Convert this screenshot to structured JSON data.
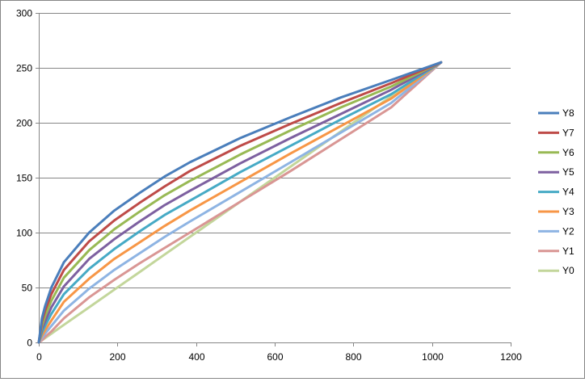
{
  "chart_data": {
    "type": "line",
    "title": "",
    "xlabel": "",
    "ylabel": "",
    "xlim": [
      0,
      1200
    ],
    "ylim": [
      0,
      300
    ],
    "x_ticks": [
      0,
      200,
      400,
      600,
      800,
      1000,
      1200
    ],
    "y_ticks": [
      0,
      50,
      100,
      150,
      200,
      250,
      300
    ],
    "grid": "horizontal",
    "legend_position": "right",
    "x": [
      0,
      8,
      16,
      32,
      64,
      128,
      192,
      256,
      320,
      384,
      512,
      640,
      768,
      896,
      1023
    ],
    "series": [
      {
        "name": "Y8",
        "color": "#4A7EBB",
        "values": [
          0,
          22,
          33,
          50,
          73,
          100,
          120,
          136,
          151,
          164,
          186,
          205,
          223,
          239,
          255
        ]
      },
      {
        "name": "Y7",
        "color": "#BE4B48",
        "values": [
          0,
          19,
          29,
          44,
          66,
          92,
          111,
          127,
          142,
          156,
          179,
          199,
          218,
          236,
          255
        ]
      },
      {
        "name": "Y6",
        "color": "#98B954",
        "values": [
          0,
          15,
          24,
          38,
          59,
          84,
          103,
          119,
          134,
          147,
          171,
          193,
          214,
          233,
          255
        ]
      },
      {
        "name": "Y5",
        "color": "#7D60A0",
        "values": [
          0,
          12,
          19,
          32,
          51,
          76,
          94,
          110,
          125,
          138,
          163,
          186,
          208,
          230,
          255
        ]
      },
      {
        "name": "Y4",
        "color": "#46AAC5",
        "values": [
          0,
          9,
          15,
          26,
          44,
          67,
          85,
          101,
          116,
          129,
          155,
          179,
          203,
          226,
          255
        ]
      },
      {
        "name": "Y3",
        "color": "#F79646",
        "values": [
          0,
          6,
          11,
          20,
          37,
          58,
          76,
          91,
          106,
          120,
          146,
          172,
          197,
          222,
          255
        ]
      },
      {
        "name": "Y2",
        "color": "#8EB4E3",
        "values": [
          0,
          4,
          8,
          15,
          29,
          49,
          66,
          81,
          96,
          110,
          137,
          164,
          191,
          218,
          255
        ]
      },
      {
        "name": "Y1",
        "color": "#D99694",
        "values": [
          0,
          2,
          5,
          10,
          22,
          41,
          57,
          72,
          86,
          100,
          128,
          156,
          185,
          214,
          255
        ]
      },
      {
        "name": "Y0",
        "color": "#C3D69B",
        "values": [
          0,
          2,
          4,
          8,
          16,
          32,
          48,
          64,
          80,
          96,
          128,
          160,
          192,
          224,
          255
        ]
      }
    ]
  }
}
